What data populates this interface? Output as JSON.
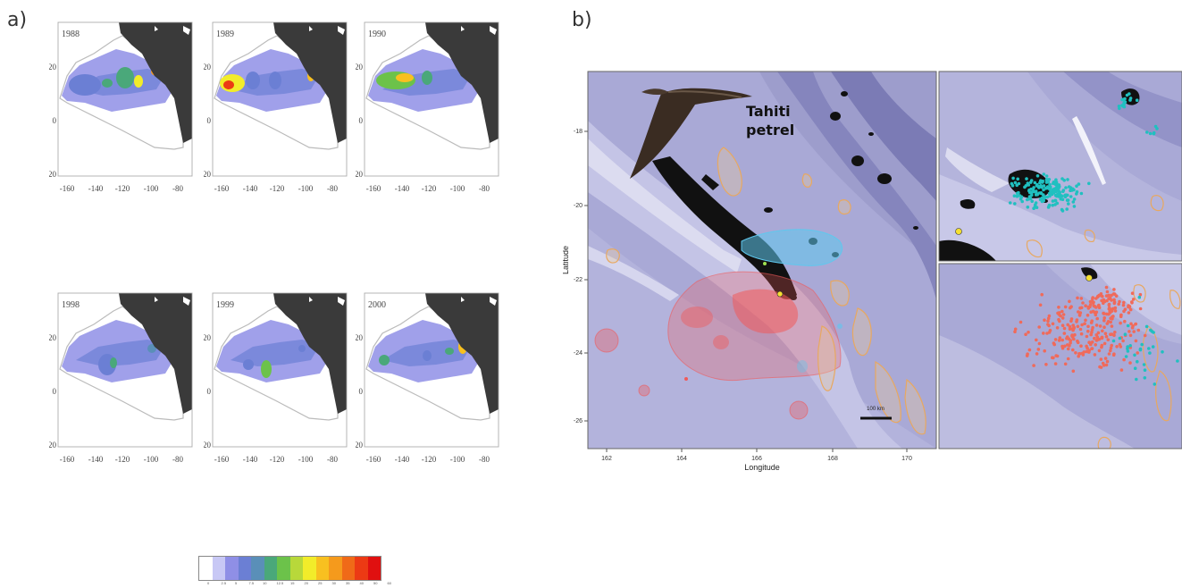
{
  "panel_a": {
    "label": "a)",
    "maps": [
      {
        "year": "1988"
      },
      {
        "year": "1989"
      },
      {
        "year": "1990"
      },
      {
        "year": "1998"
      },
      {
        "year": "1999"
      },
      {
        "year": "2000"
      }
    ],
    "y_ticks": [
      "20",
      "0",
      "-20"
    ],
    "x_ticks": [
      "-160",
      "-140",
      "-120",
      "-100",
      "-80"
    ],
    "legend": {
      "colors": [
        "#ffffff",
        "#c8c8f5",
        "#8f8fe6",
        "#6b7fd4",
        "#5a8fb8",
        "#4aa87a",
        "#6cc24a",
        "#b8d83a",
        "#f2ec2a",
        "#f8c020",
        "#f59a1c",
        "#f06a18",
        "#ec3a14",
        "#e01010"
      ],
      "ticks": [
        "0",
        "2.5",
        "5",
        "7.5",
        "10",
        "12.5",
        "15",
        "20",
        "25",
        "30",
        "35",
        "40",
        "50",
        "60"
      ]
    }
  },
  "panel_b": {
    "label": "b)",
    "species_label": "Tahiti\npetrel",
    "x_axis_label": "Longitude",
    "y_axis_label": "Latitude",
    "x_ticks": [
      "162",
      "164",
      "166",
      "168",
      "170"
    ],
    "y_ticks": [
      "-18",
      "-20",
      "-22",
      "-24",
      "-26"
    ],
    "scale_bar": "100 km",
    "colors": {
      "cyan": "#20c0c0",
      "salmon": "#f06a5a",
      "red_zone": "#f05a5a",
      "blue_zone": "#5fc8ee",
      "orange_outline": "#e8a860"
    }
  }
}
